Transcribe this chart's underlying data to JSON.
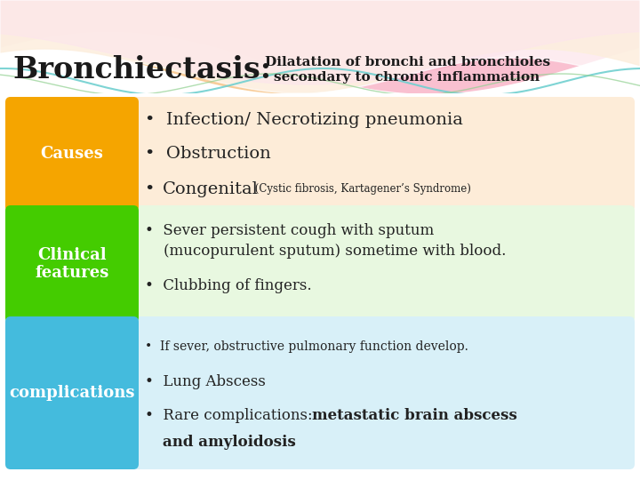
{
  "title_main": "Bronchiectasis:",
  "title_sub_line1": "Dilatation of bronchi and bronchioles",
  "title_sub_line2": "secondary to chronic inflammation",
  "bg_color": "#ffffff",
  "sections": [
    {
      "label": "Causes",
      "label_bg": "#F5A500",
      "content_bg": "#fdecd8"
    },
    {
      "label": "Clinical\nfeatures",
      "label_bg": "#44cc00",
      "content_bg": "#e8f8e0"
    },
    {
      "label": "complications",
      "label_bg": "#44bbdd",
      "content_bg": "#d8f0f8"
    }
  ],
  "wave_colors": [
    "#f8b4c8",
    "#f9cfa0",
    "#f0a0c0",
    "#ffffff"
  ],
  "text_color": "#222222",
  "white": "#ffffff"
}
